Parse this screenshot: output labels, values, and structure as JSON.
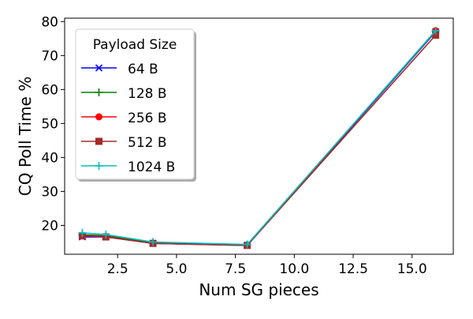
{
  "chart_data": {
    "type": "line",
    "xlabel": "Num SG pieces",
    "ylabel": "CQ Poll Time %",
    "xlim": [
      0.25,
      16.75
    ],
    "ylim": [
      11.5,
      81
    ],
    "x_ticks": [
      2.5,
      5.0,
      7.5,
      10.0,
      12.5,
      15.0
    ],
    "x_tick_labels": [
      "2.5",
      "5.0",
      "7.5",
      "10.0",
      "12.5",
      "15.0"
    ],
    "y_ticks": [
      20,
      30,
      40,
      50,
      60,
      70,
      80
    ],
    "y_tick_labels": [
      "20",
      "30",
      "40",
      "50",
      "60",
      "70",
      "80"
    ],
    "grid": false,
    "legend": {
      "title": "Payload Size",
      "placement": "upper-left"
    },
    "x": [
      1,
      2,
      4,
      8,
      16
    ],
    "series": [
      {
        "name": "64 B",
        "color": "#0000ff",
        "marker": "x",
        "values": [
          16.6,
          16.6,
          14.7,
          14.1,
          77.0
        ]
      },
      {
        "name": "128 B",
        "color": "#008000",
        "marker": "plus",
        "values": [
          17.2,
          17.0,
          14.9,
          14.3,
          77.2
        ]
      },
      {
        "name": "256 B",
        "color": "#ff0000",
        "marker": "circle",
        "values": [
          17.0,
          16.7,
          14.7,
          14.2,
          77.3
        ]
      },
      {
        "name": "512 B",
        "color": "#a52a2a",
        "marker": "square",
        "values": [
          16.9,
          16.6,
          14.7,
          14.1,
          76.0
        ]
      },
      {
        "name": "1024 B",
        "color": "#00bfbf",
        "marker": "plus",
        "values": [
          17.8,
          17.3,
          15.1,
          14.4,
          77.3
        ]
      }
    ]
  }
}
